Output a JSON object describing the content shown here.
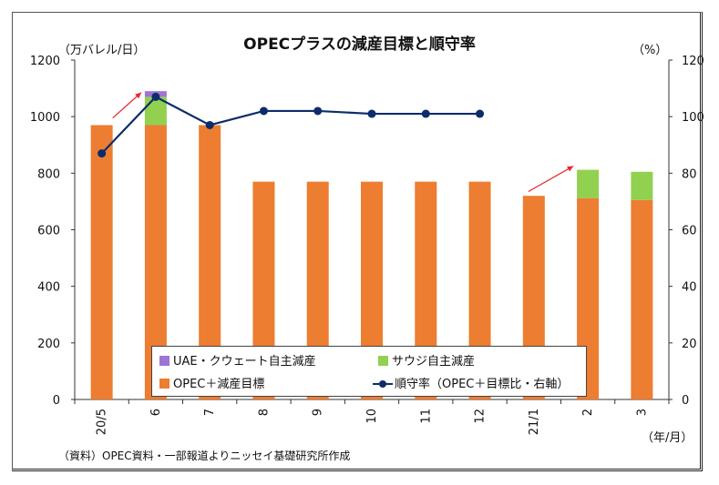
{
  "chart_data": {
    "type": "bar",
    "title": "OPECプラスの減産目標と順守率",
    "ylabel_left": "（万バレル/日）",
    "ylabel_right": "（%）",
    "xlabel": "（年/月）",
    "categories": [
      "20/5",
      "6",
      "7",
      "8",
      "9",
      "10",
      "11",
      "12",
      "21/1",
      "2",
      "3"
    ],
    "ylim_left": [
      0,
      1200
    ],
    "ylim_right": [
      0,
      120
    ],
    "yticks_left": [
      "0",
      "200",
      "400",
      "600",
      "800",
      "1000",
      "1200"
    ],
    "yticks_right": [
      "0",
      "20",
      "40",
      "60",
      "80",
      "100",
      "120"
    ],
    "series": [
      {
        "name": "OPEC＋減産目標",
        "kind": "bar",
        "color": "#ed7d31",
        "values": [
          970,
          970,
          970,
          770,
          770,
          770,
          770,
          770,
          720,
          712,
          705
        ]
      },
      {
        "name": "サウジ自主減産",
        "kind": "bar",
        "color": "#92d050",
        "values": [
          0,
          100,
          0,
          0,
          0,
          0,
          0,
          0,
          0,
          100,
          100
        ]
      },
      {
        "name": "UAE・クウェート自主減産",
        "kind": "bar",
        "color": "#9e74d4",
        "values": [
          0,
          20,
          0,
          0,
          0,
          0,
          0,
          0,
          0,
          0,
          0
        ]
      },
      {
        "name": "順守率（OPEC＋目標比・右軸）",
        "kind": "line",
        "axis": "right",
        "color": "#0d2c6b",
        "values": [
          87,
          107,
          97,
          102,
          102,
          101,
          101,
          101,
          null,
          null,
          null
        ]
      }
    ],
    "annotations": "red arrows at 20/5 and 21/1 indicating increase",
    "grid": false,
    "legend_position": "inside-bottom"
  },
  "source_note": "（資料）OPEC資料・一部報道よりニッセイ基礎研究所作成"
}
